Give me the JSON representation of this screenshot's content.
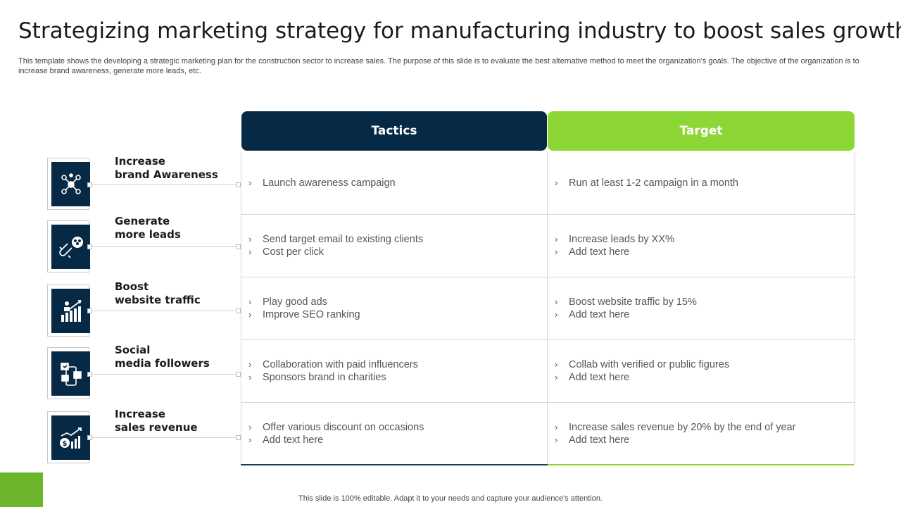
{
  "title": "Strategizing marketing strategy for manufacturing industry to boost sales growth",
  "description": "This template shows the developing a strategic marketing plan for the construction sector to increase sales. The purpose of this slide is to evaluate the best alternative method to meet the organization’s goals. The objective of the organization is to increase brand awareness, generate more leads, etc.",
  "headers": {
    "tactics": "Tactics",
    "target": "Target"
  },
  "colors": {
    "navy": "#062a46",
    "green": "#8cd635",
    "corner": "#6bb52b"
  },
  "rows": [
    {
      "label_line1": "Increase",
      "label_line2": "brand Awareness",
      "icon": "people-network-icon",
      "tactics": [
        "Launch awareness campaign"
      ],
      "targets": [
        "Run at least 1-2  campaign in a month"
      ]
    },
    {
      "label_line1": "Generate",
      "label_line2": "more leads",
      "icon": "magnet-users-icon",
      "tactics": [
        "Send target email to existing clients",
        "Cost per click"
      ],
      "targets": [
        "Increase leads by XX%",
        "Add text here"
      ]
    },
    {
      "label_line1": "Boost",
      "label_line2": "website traffic",
      "icon": "growth-chart-person-icon",
      "tactics": [
        "Play good ads",
        "Improve SEO ranking"
      ],
      "targets": [
        "Boost website traffic by 15%",
        "Add text here"
      ]
    },
    {
      "label_line1": "Social",
      "label_line2": "media followers",
      "icon": "social-media-phone-icon",
      "tactics": [
        "Collaboration with paid influencers",
        "Sponsors brand in charities"
      ],
      "targets": [
        "Collab with verified or public figures",
        "Add text here"
      ]
    },
    {
      "label_line1": "Increase",
      "label_line2": "sales revenue",
      "icon": "dollar-growth-chart-icon",
      "tactics": [
        "Offer various discount on occasions",
        "Add text here"
      ],
      "targets": [
        "Increase sales revenue by 20% by the end of year",
        "Add text here"
      ]
    }
  ],
  "bullet": "›",
  "footer": "This slide is 100% editable. Adapt it to your needs and capture your audience's attention."
}
